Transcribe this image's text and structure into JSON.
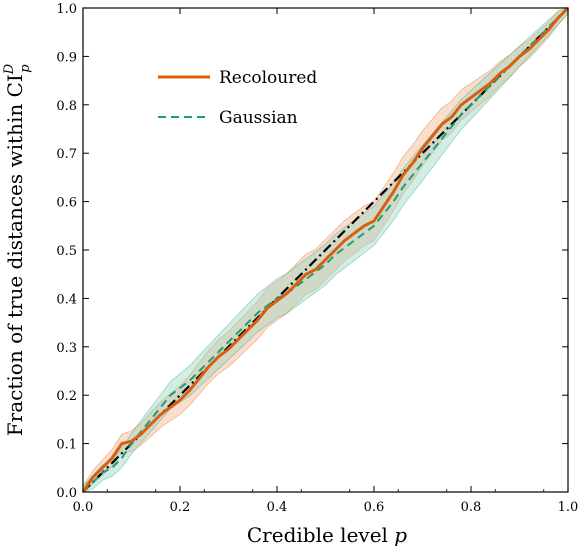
{
  "chart_data": {
    "type": "line",
    "title": "",
    "xlabel_text": "Credible level ",
    "xlabel_var": "p",
    "ylabel_text": "Fraction of true distances within CI",
    "ylabel_sup": "D",
    "ylabel_sub": "p",
    "xlim": [
      0,
      1
    ],
    "ylim": [
      0,
      1
    ],
    "xticks": [
      "0.0",
      "0.2",
      "0.4",
      "0.6",
      "0.8",
      "1.0"
    ],
    "yticks": [
      "0.0",
      "0.1",
      "0.2",
      "0.3",
      "0.4",
      "0.5",
      "0.6",
      "0.7",
      "0.8",
      "0.9",
      "1.0"
    ],
    "grid": false,
    "legend_position": "upper-left",
    "colors": {
      "recoloured": "#d95f0e",
      "recoloured_band": "#f4b58f",
      "gaussian": "#1b9e77",
      "gaussian_band": "#8fd3bd",
      "diagonal": "#000000"
    },
    "diagonal": {
      "x": [
        0,
        1
      ],
      "y": [
        0,
        1
      ]
    },
    "series": [
      {
        "name": "Recoloured",
        "style": "solid",
        "x": [
          0,
          0.02,
          0.04,
          0.06,
          0.08,
          0.1,
          0.12,
          0.14,
          0.16,
          0.18,
          0.2,
          0.22,
          0.24,
          0.26,
          0.28,
          0.3,
          0.32,
          0.34,
          0.36,
          0.38,
          0.4,
          0.42,
          0.44,
          0.46,
          0.48,
          0.5,
          0.52,
          0.54,
          0.56,
          0.58,
          0.6,
          0.62,
          0.64,
          0.66,
          0.68,
          0.7,
          0.72,
          0.74,
          0.76,
          0.78,
          0.8,
          0.82,
          0.84,
          0.86,
          0.88,
          0.9,
          0.92,
          0.94,
          0.96,
          0.98,
          1.0
        ],
        "y": [
          0,
          0.03,
          0.05,
          0.07,
          0.1,
          0.105,
          0.12,
          0.14,
          0.16,
          0.175,
          0.19,
          0.21,
          0.235,
          0.26,
          0.28,
          0.295,
          0.315,
          0.335,
          0.355,
          0.38,
          0.395,
          0.41,
          0.43,
          0.45,
          0.46,
          0.48,
          0.5,
          0.52,
          0.535,
          0.55,
          0.56,
          0.59,
          0.62,
          0.655,
          0.68,
          0.71,
          0.735,
          0.76,
          0.775,
          0.8,
          0.815,
          0.83,
          0.845,
          0.865,
          0.88,
          0.9,
          0.915,
          0.935,
          0.955,
          0.98,
          1.0
        ]
      },
      {
        "name": "Gaussian",
        "style": "dashed",
        "x": [
          0,
          0.02,
          0.04,
          0.06,
          0.08,
          0.1,
          0.12,
          0.14,
          0.16,
          0.18,
          0.2,
          0.22,
          0.24,
          0.26,
          0.28,
          0.3,
          0.32,
          0.34,
          0.36,
          0.38,
          0.4,
          0.42,
          0.44,
          0.46,
          0.48,
          0.5,
          0.52,
          0.54,
          0.56,
          0.58,
          0.6,
          0.62,
          0.64,
          0.66,
          0.68,
          0.7,
          0.72,
          0.74,
          0.76,
          0.78,
          0.8,
          0.82,
          0.84,
          0.86,
          0.88,
          0.9,
          0.92,
          0.94,
          0.96,
          0.98,
          1.0
        ],
        "y": [
          0,
          0.02,
          0.04,
          0.05,
          0.07,
          0.1,
          0.125,
          0.15,
          0.175,
          0.2,
          0.215,
          0.23,
          0.25,
          0.27,
          0.29,
          0.31,
          0.33,
          0.35,
          0.37,
          0.385,
          0.4,
          0.41,
          0.425,
          0.44,
          0.455,
          0.47,
          0.49,
          0.505,
          0.52,
          0.535,
          0.55,
          0.575,
          0.6,
          0.63,
          0.655,
          0.68,
          0.705,
          0.73,
          0.755,
          0.78,
          0.8,
          0.82,
          0.84,
          0.86,
          0.88,
          0.9,
          0.92,
          0.94,
          0.96,
          0.98,
          1.0
        ]
      }
    ]
  }
}
